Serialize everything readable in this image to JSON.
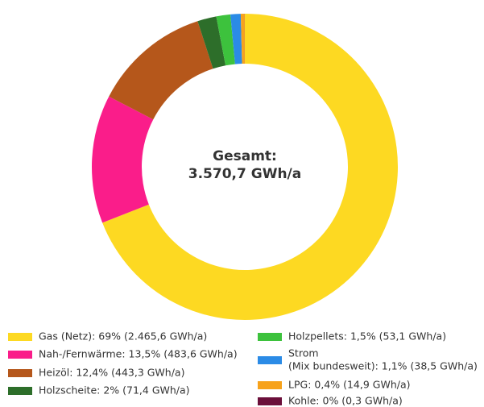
{
  "chart_data": {
    "type": "donut",
    "center_label": [
      "Gesamt:",
      "3.570,7 GWh/a"
    ],
    "categories": [
      "Gas (Netz): 69% (2.465,6 GWh/a)",
      "Nah-/Fernwärme: 13,5% (483,6 GWh/a)",
      "Heizöl: 12,4% (443,3 GWh/a)",
      "Holzscheite: 2% (71,4 GWh/a)",
      "Holzpellets: 1,5% (53,1 GWh/a)",
      [
        "Strom",
        "(Mix bundesweit): 1,1% (38,5 GWh/a)"
      ],
      "LPG: 0,4% (14,9 GWh/a)",
      "Kohle: 0% (0,3 GWh/a)"
    ],
    "values": [
      2465.6,
      483.6,
      443.3,
      71.4,
      53.1,
      38.5,
      14.9,
      0.3
    ],
    "colors": [
      "#fdd922",
      "#fa1d8a",
      "#b5571b",
      "#2d6e2a",
      "#3dc23d",
      "#2b8be6",
      "#f7a21b",
      "#6b0f3a"
    ]
  }
}
